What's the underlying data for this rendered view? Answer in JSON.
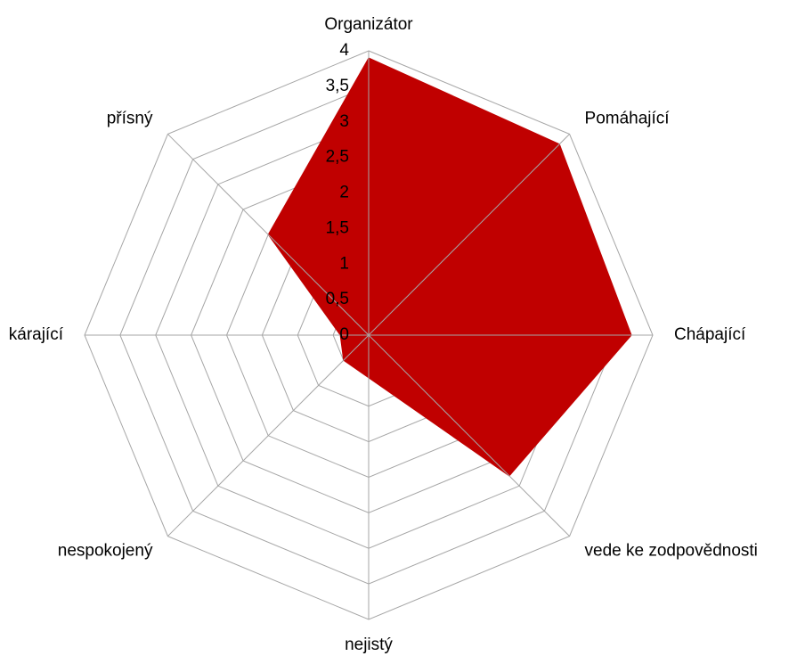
{
  "chart_data": {
    "type": "radar",
    "categories": [
      "Organizátor",
      "Pomáhající",
      "Chápající",
      "vede ke zodpovědnosti",
      "nejistý",
      "nespokojený",
      "kárající",
      "přísný"
    ],
    "series": [
      {
        "name": null,
        "color": "#c00000",
        "values": [
          3.9,
          3.8,
          3.7,
          2.8,
          0.6,
          0.5,
          0.4,
          2.0
        ]
      }
    ],
    "ylim": [
      0,
      4
    ],
    "yticks": [
      0,
      {
        "value": 0.5,
        "label": "0,5"
      },
      1,
      {
        "value": 1.5,
        "label": "1,5"
      },
      2,
      {
        "value": 2.5,
        "label": "2,5"
      },
      3,
      {
        "value": 3.5,
        "label": "3,5"
      },
      4
    ],
    "grid": true
  }
}
